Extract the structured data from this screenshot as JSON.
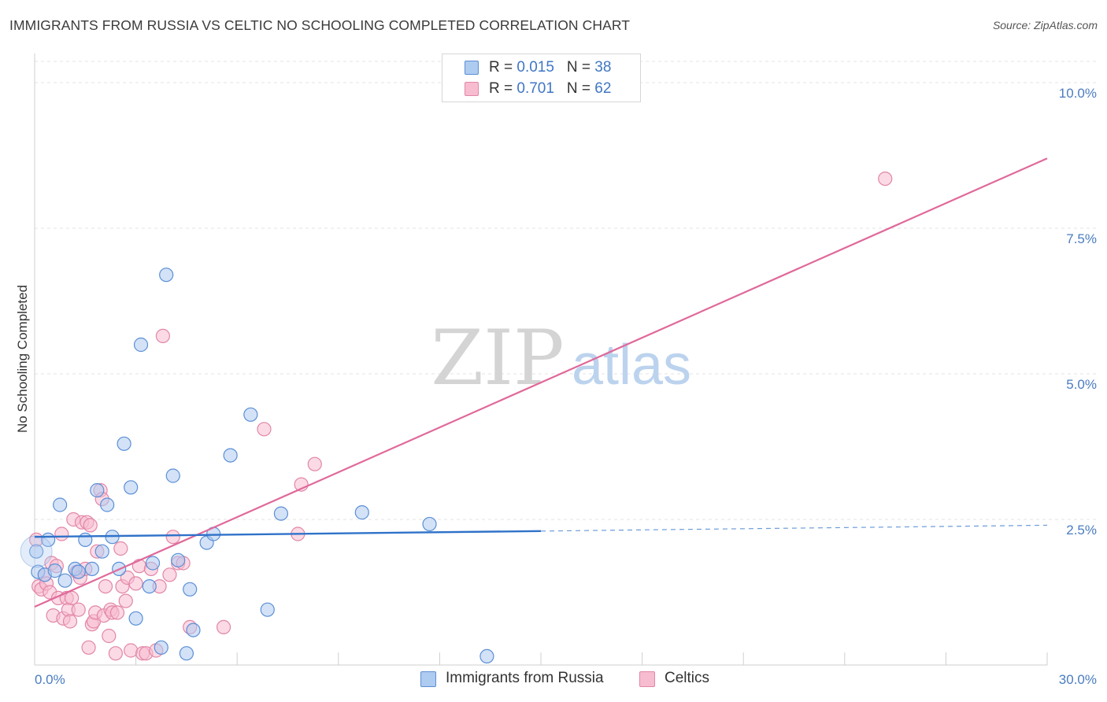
{
  "title": "IMMIGRANTS FROM RUSSIA VS CELTIC NO SCHOOLING COMPLETED CORRELATION CHART",
  "source": "Source: ZipAtlas.com",
  "watermark": {
    "zip": "ZIP",
    "atlas": "atlas"
  },
  "colors": {
    "blue_fill": "#aecbf0",
    "blue_stroke": "#5b8fd6",
    "blue_line": "#2f72c9",
    "pink_fill": "#f7bcd0",
    "pink_stroke": "#e286a7",
    "pink_line": "#e0699a",
    "tick_text": "#4a7cc0",
    "grid": "#e3e3e3"
  },
  "legend": {
    "rows": [
      {
        "r_label": "R = ",
        "r_value": "0.015",
        "n_label": "N = ",
        "n_value": "38"
      },
      {
        "r_label": "R = ",
        "r_value": "0.701",
        "n_label": "N = ",
        "n_value": "62"
      }
    ]
  },
  "bottom_legend": [
    "Immigrants from Russia",
    "Celtics"
  ],
  "chart_data": {
    "type": "scatter",
    "title": "IMMIGRANTS FROM RUSSIA VS CELTIC NO SCHOOLING COMPLETED CORRELATION CHART",
    "xlabel": "",
    "ylabel": "No Schooling Completed",
    "xlim": [
      0,
      30
    ],
    "ylim": [
      0,
      10.5
    ],
    "x_tick_labels": [
      "0.0%",
      "30.0%"
    ],
    "y_ticks": [
      2.5,
      5.0,
      7.5,
      10.0
    ],
    "y_tick_labels": [
      "2.5%",
      "5.0%",
      "7.5%",
      "10.0%"
    ],
    "grid": true,
    "legend_position": "top-center",
    "series": [
      {
        "name": "Immigrants from Russia",
        "R": 0.015,
        "N": 38,
        "trend": {
          "x0": 0,
          "y0": 2.2,
          "x1": 15,
          "y1": 2.3,
          "dashed_to_x": 30,
          "dashed_to_y": 2.4
        },
        "points": [
          [
            0.05,
            1.95
          ],
          [
            0.1,
            1.6
          ],
          [
            0.3,
            1.55
          ],
          [
            0.4,
            2.15
          ],
          [
            0.6,
            1.62
          ],
          [
            0.75,
            2.75
          ],
          [
            0.9,
            1.45
          ],
          [
            1.2,
            1.65
          ],
          [
            1.3,
            1.6
          ],
          [
            1.5,
            2.15
          ],
          [
            1.7,
            1.65
          ],
          [
            1.85,
            3.0
          ],
          [
            2.0,
            1.95
          ],
          [
            2.15,
            2.75
          ],
          [
            2.3,
            2.2
          ],
          [
            2.5,
            1.65
          ],
          [
            2.65,
            3.8
          ],
          [
            2.85,
            3.05
          ],
          [
            3.0,
            0.8
          ],
          [
            3.15,
            5.5
          ],
          [
            3.4,
            1.35
          ],
          [
            3.5,
            1.75
          ],
          [
            3.75,
            0.3
          ],
          [
            3.9,
            6.7
          ],
          [
            4.1,
            3.25
          ],
          [
            4.25,
            1.8
          ],
          [
            4.5,
            0.2
          ],
          [
            4.6,
            1.3
          ],
          [
            4.7,
            0.6
          ],
          [
            5.1,
            2.1
          ],
          [
            5.3,
            2.25
          ],
          [
            5.8,
            3.6
          ],
          [
            6.4,
            4.3
          ],
          [
            6.9,
            0.95
          ],
          [
            7.3,
            2.6
          ],
          [
            9.7,
            2.62
          ],
          [
            11.7,
            2.42
          ],
          [
            13.4,
            0.15
          ]
        ]
      },
      {
        "name": "Celtics",
        "R": 0.701,
        "N": 62,
        "trend": {
          "x0": 0,
          "y0": 1.0,
          "x1": 30,
          "y1": 8.7
        },
        "points": [
          [
            0.05,
            2.15
          ],
          [
            0.12,
            1.35
          ],
          [
            0.2,
            1.3
          ],
          [
            0.3,
            1.55
          ],
          [
            0.35,
            1.4
          ],
          [
            0.45,
            1.25
          ],
          [
            0.5,
            1.75
          ],
          [
            0.55,
            0.85
          ],
          [
            0.65,
            1.7
          ],
          [
            0.7,
            1.15
          ],
          [
            0.8,
            2.25
          ],
          [
            0.85,
            0.8
          ],
          [
            0.95,
            1.15
          ],
          [
            1.0,
            0.95
          ],
          [
            1.05,
            0.75
          ],
          [
            1.1,
            1.15
          ],
          [
            1.15,
            2.5
          ],
          [
            1.25,
            1.6
          ],
          [
            1.3,
            0.95
          ],
          [
            1.35,
            1.5
          ],
          [
            1.4,
            2.45
          ],
          [
            1.5,
            1.65
          ],
          [
            1.55,
            2.45
          ],
          [
            1.6,
            0.3
          ],
          [
            1.65,
            2.4
          ],
          [
            1.7,
            0.7
          ],
          [
            1.75,
            0.75
          ],
          [
            1.8,
            0.9
          ],
          [
            1.85,
            1.95
          ],
          [
            1.95,
            3.0
          ],
          [
            2.0,
            2.85
          ],
          [
            2.05,
            0.85
          ],
          [
            2.1,
            1.35
          ],
          [
            2.2,
            0.5
          ],
          [
            2.25,
            0.95
          ],
          [
            2.3,
            0.9
          ],
          [
            2.4,
            0.2
          ],
          [
            2.45,
            0.9
          ],
          [
            2.55,
            2.0
          ],
          [
            2.6,
            1.35
          ],
          [
            2.7,
            1.1
          ],
          [
            2.75,
            1.5
          ],
          [
            2.85,
            0.25
          ],
          [
            3.0,
            1.4
          ],
          [
            3.1,
            1.7
          ],
          [
            3.2,
            0.2
          ],
          [
            3.3,
            0.2
          ],
          [
            3.45,
            1.65
          ],
          [
            3.6,
            0.25
          ],
          [
            3.7,
            1.35
          ],
          [
            3.8,
            5.65
          ],
          [
            4.0,
            1.55
          ],
          [
            4.1,
            2.2
          ],
          [
            4.25,
            1.75
          ],
          [
            4.4,
            1.75
          ],
          [
            4.6,
            0.65
          ],
          [
            5.6,
            0.65
          ],
          [
            6.8,
            4.05
          ],
          [
            7.8,
            2.25
          ],
          [
            7.9,
            3.1
          ],
          [
            8.3,
            3.45
          ],
          [
            25.2,
            8.35
          ]
        ]
      }
    ]
  }
}
